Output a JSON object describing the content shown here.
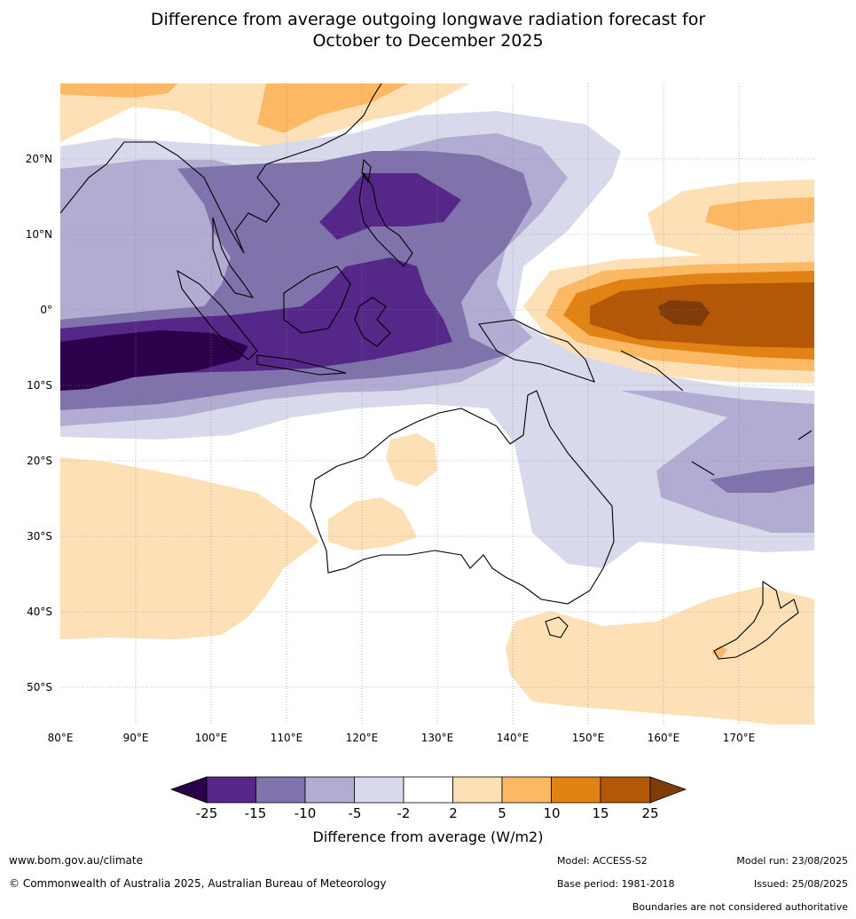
{
  "title_line1": "Difference from average outgoing longwave radiation forecast for",
  "title_line2": "October to December 2025",
  "map": {
    "lat_labels": [
      "20°N",
      "10°N",
      "0°",
      "10°S",
      "20°S",
      "30°S",
      "40°S",
      "50°S"
    ],
    "lon_labels": [
      "80°E",
      "90°E",
      "100°E",
      "110°E",
      "120°E",
      "130°E",
      "140°E",
      "150°E",
      "160°E",
      "170°E"
    ]
  },
  "colorbar": {
    "ticks": [
      "-25",
      "-15",
      "-10",
      "-5",
      "-2",
      "2",
      "5",
      "10",
      "15",
      "25"
    ],
    "colors": {
      "below_-25": "#2d004b",
      "-25_-15": "#542788",
      "-15_-10": "#8073ac",
      "-10_-5": "#b2abd2",
      "-5_-2": "#d8daeb",
      "-2_2": "#ffffff",
      "2_5": "#fee0b6",
      "5_10": "#fdb863",
      "10_15": "#e08214",
      "15_25": "#b35806",
      "above_25": "#7f3b08"
    },
    "title": "Difference from average (W/m2)"
  },
  "footer": {
    "website": "www.bom.gov.au/climate",
    "copyright": "© Commonwealth of Australia 2025, Australian Bureau of Meteorology",
    "model": "Model: ACCESS-S2",
    "base_period": "Base period: 1981-2018",
    "model_run": "Model run: 23/08/2025",
    "issued": "Issued: 25/08/2025",
    "disclaimer": "Boundaries are not considered authoritative"
  }
}
